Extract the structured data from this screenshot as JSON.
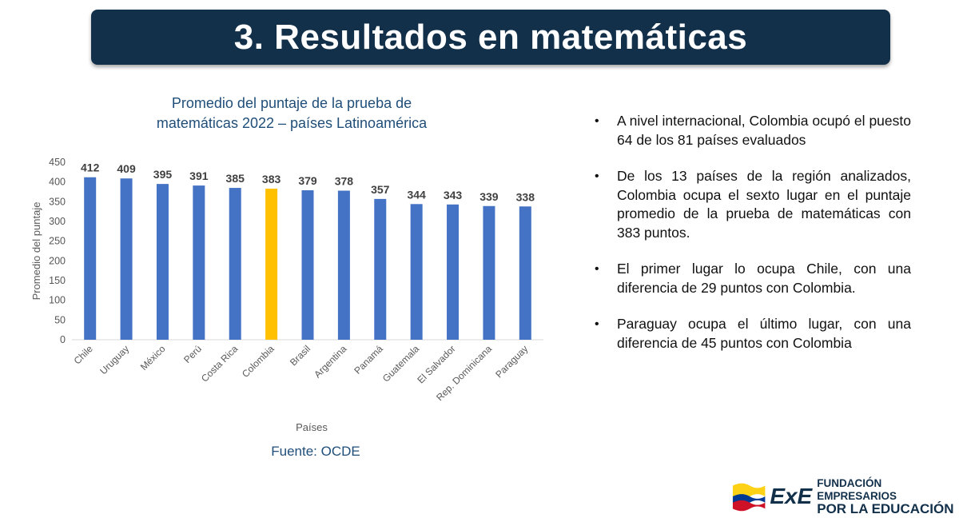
{
  "slide_title": "3. Resultados en matemáticas",
  "chart_title_line1": "Promedio del puntaje de la prueba de",
  "chart_title_line2": "matemáticas 2022 – países Latinoamérica",
  "source": "Fuente: OCDE",
  "bullets": [
    "A nivel internacional, Colombia ocupó el puesto 64 de los 81 países evaluados",
    "De los 13 países de la región analizados, Colombia ocupa el sexto lugar en el puntaje promedio de la prueba de matemáticas con 383 puntos.",
    "El primer lugar lo ocupa Chile, con una diferencia de 29 puntos con Colombia.",
    "Paraguay ocupa el último lugar, con una diferencia de 45 puntos con Colombia"
  ],
  "logo": {
    "mark": "ExE",
    "line1": "FUNDACIÓN EMPRESARIOS",
    "line2": "POR LA EDUCACIÓN"
  },
  "colors": {
    "title_bar": "#12304a",
    "bar": "#4472c4",
    "highlight": "#ffc000",
    "chart_title": "#1f4e79"
  },
  "chart_data": {
    "type": "bar",
    "title": "Promedio del puntaje de la prueba de matemáticas 2022 – países Latinoamérica",
    "categories": [
      "Chile",
      "Uruguay",
      "México",
      "Perú",
      "Costa Rica",
      "Colombia",
      "Brasil",
      "Argentina",
      "Panamá",
      "Guatemala",
      "El Salvador",
      "Rep. Dominicana",
      "Paraguay"
    ],
    "values": [
      412,
      409,
      395,
      391,
      385,
      383,
      379,
      378,
      357,
      344,
      343,
      339,
      338
    ],
    "highlight_category": "Colombia",
    "xlabel": "Países",
    "ylabel": "Promedio del puntaje",
    "ylim": [
      0,
      450
    ],
    "yticks": [
      0,
      50,
      100,
      150,
      200,
      250,
      300,
      350,
      400,
      450
    ],
    "grid": false,
    "data_labels": true
  }
}
